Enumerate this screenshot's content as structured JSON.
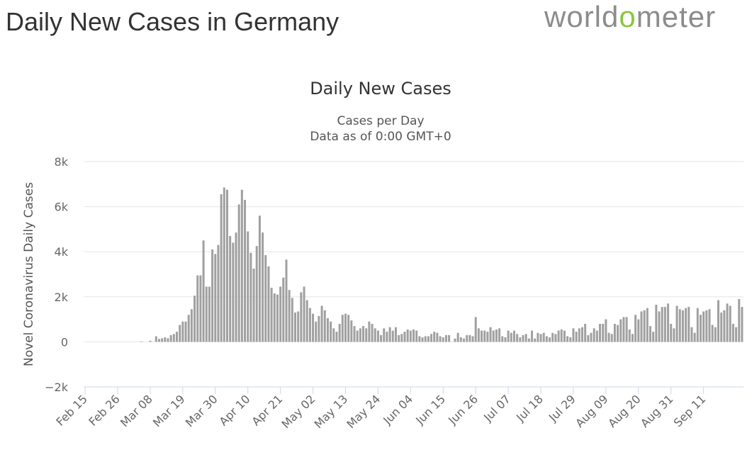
{
  "header": {
    "page_title": "Daily New Cases in Germany",
    "logo_text": {
      "before": "world",
      "o": "o",
      "after": "meter"
    },
    "logo_color": "#8c8c8c",
    "logo_accent": "#8cc63f"
  },
  "chart_data": {
    "type": "bar",
    "title": "Daily New Cases",
    "subtitle_lines": [
      "Cases per Day",
      "Data as of 0:00 GMT+0"
    ],
    "ylabel": "Novel Coronavirus Daily Cases",
    "xlabel": "",
    "ylim": [
      -2000,
      8000
    ],
    "yticks": [
      {
        "v": 8000,
        "label": "8k"
      },
      {
        "v": 6000,
        "label": "6k"
      },
      {
        "v": 4000,
        "label": "4k"
      },
      {
        "v": 2000,
        "label": "2k"
      },
      {
        "v": 0,
        "label": "0"
      },
      {
        "v": -2000,
        "label": "−2k"
      }
    ],
    "xticks": [
      {
        "i": 0,
        "label": "Feb 15"
      },
      {
        "i": 11,
        "label": "Feb 26"
      },
      {
        "i": 22,
        "label": "Mar 08"
      },
      {
        "i": 33,
        "label": "Mar 19"
      },
      {
        "i": 44,
        "label": "Mar 30"
      },
      {
        "i": 55,
        "label": "Apr 10"
      },
      {
        "i": 66,
        "label": "Apr 21"
      },
      {
        "i": 77,
        "label": "May 02"
      },
      {
        "i": 88,
        "label": "May 13"
      },
      {
        "i": 99,
        "label": "May 24"
      },
      {
        "i": 110,
        "label": "Jun 04"
      },
      {
        "i": 121,
        "label": "Jun 15"
      },
      {
        "i": 132,
        "label": "Jun 26"
      },
      {
        "i": 143,
        "label": "Jul 07"
      },
      {
        "i": 154,
        "label": "Jul 18"
      },
      {
        "i": 165,
        "label": "Jul 29"
      },
      {
        "i": 176,
        "label": "Aug 09"
      },
      {
        "i": 187,
        "label": "Aug 20"
      },
      {
        "i": 198,
        "label": "Aug 31"
      },
      {
        "i": 209,
        "label": "Sep 11"
      }
    ],
    "start_date": "Feb 15",
    "bar_color": "#a0a0a0",
    "series": [
      {
        "name": "Daily Cases",
        "values": [
          0,
          0,
          0,
          0,
          0,
          0,
          0,
          0,
          0,
          0,
          0,
          0,
          0,
          0,
          0,
          0,
          0,
          0,
          0,
          20,
          0,
          0,
          50,
          0,
          250,
          130,
          160,
          200,
          160,
          300,
          350,
          450,
          750,
          900,
          900,
          1200,
          1450,
          2050,
          2950,
          2950,
          4500,
          2450,
          2450,
          4100,
          3900,
          4300,
          6550,
          6850,
          6750,
          4700,
          4400,
          4850,
          6100,
          6750,
          6300,
          4900,
          3950,
          3250,
          4250,
          5600,
          4850,
          3850,
          3350,
          2400,
          2150,
          2100,
          2450,
          2850,
          3650,
          2300,
          1950,
          1300,
          1350,
          2200,
          2450,
          1850,
          1500,
          1250,
          900,
          1150,
          1600,
          1400,
          1050,
          900,
          600,
          450,
          800,
          1200,
          1250,
          1200,
          950,
          700,
          500,
          600,
          700,
          600,
          900,
          800,
          600,
          500,
          300,
          600,
          450,
          650,
          500,
          650,
          300,
          350,
          450,
          550,
          500,
          550,
          500,
          250,
          200,
          250,
          250,
          350,
          450,
          400,
          250,
          200,
          300,
          300,
          0,
          150,
          400,
          200,
          150,
          300,
          300,
          250,
          1100,
          600,
          500,
          500,
          450,
          650,
          500,
          550,
          600,
          250,
          200,
          500,
          400,
          500,
          350,
          200,
          300,
          350,
          150,
          500,
          150,
          400,
          350,
          400,
          250,
          200,
          400,
          350,
          500,
          550,
          500,
          250,
          200,
          600,
          450,
          600,
          650,
          800,
          300,
          400,
          600,
          500,
          800,
          800,
          1000,
          400,
          350,
          800,
          750,
          1000,
          1100,
          1100,
          550,
          350,
          1200,
          1000,
          1350,
          1400,
          1500,
          700,
          450,
          1650,
          1350,
          1550,
          1550,
          1700,
          800,
          600,
          1600,
          1450,
          1400,
          1500,
          1550,
          650,
          400,
          1500,
          1200,
          1350,
          1400,
          1450,
          750,
          650,
          1850,
          1300,
          1400,
          1700,
          1600,
          800,
          650,
          1900,
          1550
        ]
      }
    ]
  }
}
